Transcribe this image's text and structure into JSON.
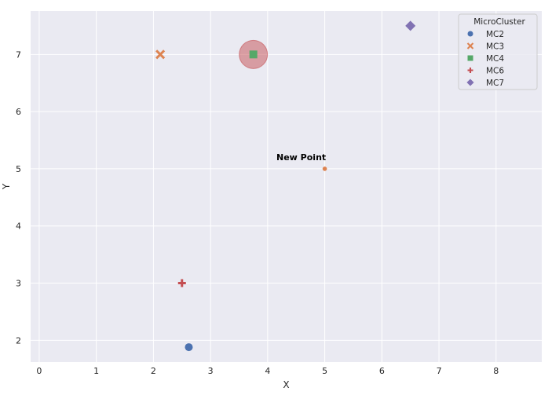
{
  "chart_data": {
    "type": "scatter",
    "title": "",
    "xlabel": "X",
    "ylabel": "Y",
    "xlim": [
      -0.15,
      8.8
    ],
    "ylim": [
      1.62,
      7.76
    ],
    "xticks": [
      0,
      1,
      2,
      3,
      4,
      5,
      6,
      7,
      8
    ],
    "yticks": [
      2,
      3,
      4,
      5,
      6,
      7
    ],
    "grid": true,
    "background": "#eaeaf2",
    "legend": {
      "title": "MicroCluster",
      "placement": "top-right",
      "entries": [
        {
          "label": "MC2",
          "marker": "circle",
          "color": "#4c72b0"
        },
        {
          "label": "MC3",
          "marker": "x",
          "color": "#dd8452"
        },
        {
          "label": "MC4",
          "marker": "square",
          "color": "#55a868"
        },
        {
          "label": "MC6",
          "marker": "plus",
          "color": "#c44e52"
        },
        {
          "label": "MC7",
          "marker": "diamond",
          "color": "#8172b3"
        }
      ]
    },
    "series": [
      {
        "name": "MC2",
        "marker": "circle",
        "color": "#4c72b0",
        "points": [
          {
            "x": 2.62,
            "y": 1.88
          }
        ]
      },
      {
        "name": "MC3",
        "marker": "x",
        "color": "#dd8452",
        "points": [
          {
            "x": 2.12,
            "y": 7.0
          }
        ]
      },
      {
        "name": "MC4",
        "marker": "square",
        "color": "#55a868",
        "points": [
          {
            "x": 3.75,
            "y": 7.0
          }
        ]
      },
      {
        "name": "MC6",
        "marker": "plus",
        "color": "#c44e52",
        "points": [
          {
            "x": 2.5,
            "y": 3.0
          }
        ]
      },
      {
        "name": "MC7",
        "marker": "diamond",
        "color": "#8172b3",
        "points": [
          {
            "x": 6.5,
            "y": 7.5
          }
        ]
      }
    ],
    "highlight_circle": {
      "x": 3.75,
      "y": 7.0,
      "color": "#c44e52",
      "opacity": 0.5
    },
    "new_point": {
      "x": 5.0,
      "y": 5.0,
      "color": "#dd8452"
    },
    "annotations": [
      {
        "text": "New Point",
        "x": 5.0,
        "y": 5.0
      }
    ]
  }
}
